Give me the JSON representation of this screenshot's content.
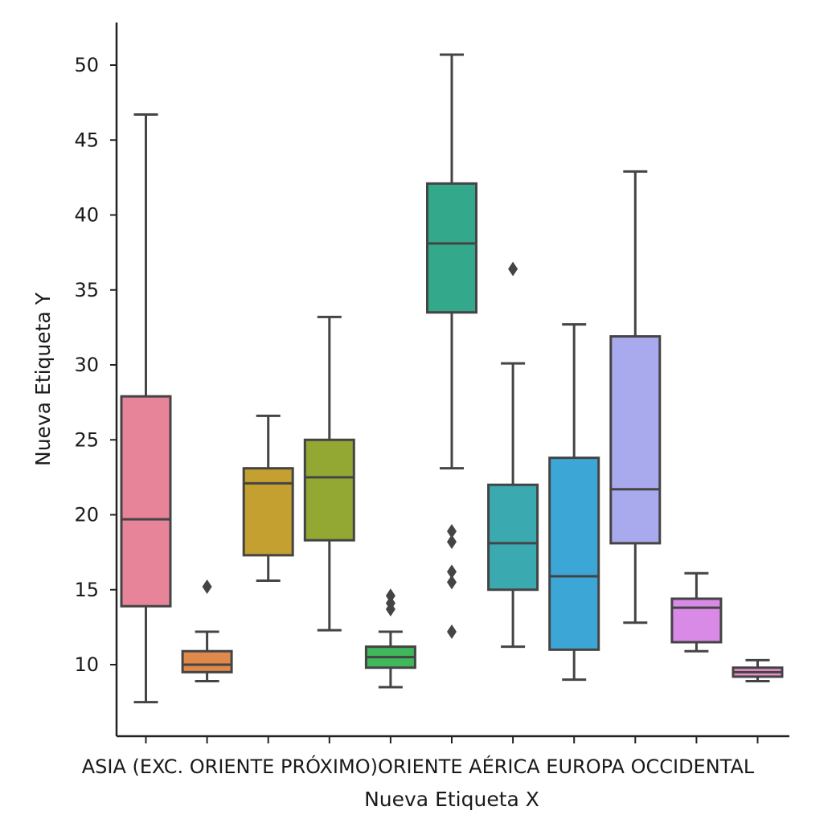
{
  "chart_data": {
    "type": "box",
    "title": "",
    "xlabel": "Nueva Etiqueta X",
    "ylabel": "Nueva Etiqueta Y",
    "ylim": [
      5,
      53
    ],
    "yticks": [
      10,
      15,
      20,
      25,
      30,
      35,
      40,
      45,
      50
    ],
    "x_tick_text": "ASIA (EXC. ORIENTE PRÓXIMO)ORIENTE AÉRICA EUROPA OCCIDENTAL",
    "grid": false,
    "series": [
      {
        "color": "#e8849a",
        "whisker_low": 7.5,
        "q1": 13.9,
        "median": 19.7,
        "q3": 27.9,
        "whisker_high": 46.7,
        "outliers": []
      },
      {
        "color": "#e0894a",
        "whisker_low": 8.9,
        "q1": 9.5,
        "median": 10.0,
        "q3": 10.9,
        "whisker_high": 12.2,
        "outliers": [
          15.2
        ]
      },
      {
        "color": "#c4a030",
        "whisker_low": 15.6,
        "q1": 17.3,
        "median": 22.1,
        "q3": 23.1,
        "whisker_high": 26.6,
        "outliers": []
      },
      {
        "color": "#93a832",
        "whisker_low": 12.3,
        "q1": 18.3,
        "median": 22.5,
        "q3": 25.0,
        "whisker_high": 33.2,
        "outliers": []
      },
      {
        "color": "#3eb85a",
        "whisker_low": 8.5,
        "q1": 9.8,
        "median": 10.5,
        "q3": 11.2,
        "whisker_high": 12.2,
        "outliers": [
          13.7,
          14.1,
          14.6
        ]
      },
      {
        "color": "#34a88a",
        "whisker_low": 23.1,
        "q1": 33.5,
        "median": 38.1,
        "q3": 42.1,
        "whisker_high": 50.7,
        "outliers": [
          12.2,
          15.5,
          16.2,
          18.2,
          18.9
        ]
      },
      {
        "color": "#3aaab0",
        "whisker_low": 11.2,
        "q1": 15.0,
        "median": 18.1,
        "q3": 22.0,
        "whisker_high": 30.1,
        "outliers": [
          36.4
        ]
      },
      {
        "color": "#3ca6d6",
        "whisker_low": 9.0,
        "q1": 11.0,
        "median": 15.9,
        "q3": 23.8,
        "whisker_high": 32.7,
        "outliers": []
      },
      {
        "color": "#a9aaee",
        "whisker_low": 12.8,
        "q1": 18.1,
        "median": 21.7,
        "q3": 31.9,
        "whisker_high": 42.9,
        "outliers": []
      },
      {
        "color": "#d88ae6",
        "whisker_low": 10.9,
        "q1": 11.5,
        "median": 13.8,
        "q3": 14.4,
        "whisker_high": 16.1,
        "outliers": []
      },
      {
        "color": "#ea8fc8",
        "whisker_low": 8.9,
        "q1": 9.2,
        "median": 9.5,
        "q3": 9.8,
        "whisker_high": 10.3,
        "outliers": []
      }
    ]
  }
}
